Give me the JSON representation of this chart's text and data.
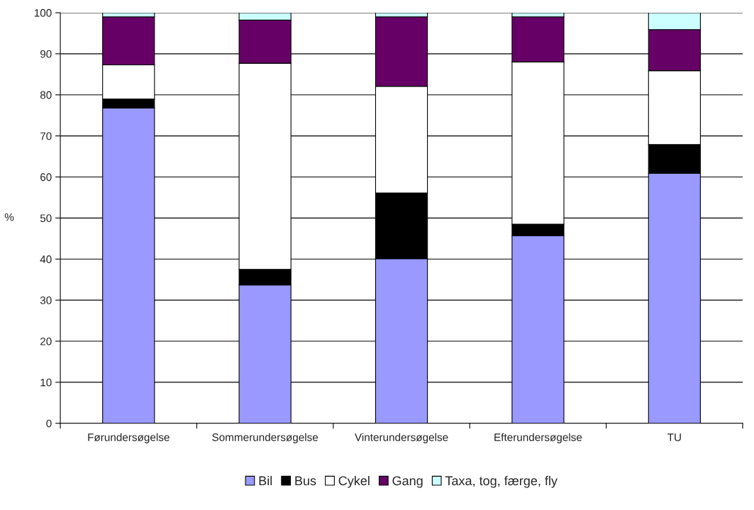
{
  "chart_data": {
    "type": "bar",
    "stacked": true,
    "ylabel": "%",
    "categories": [
      "Førundersøgelse",
      "Sommerundersøgelse",
      "Vinterundersøgelse",
      "Efterundersøgelse",
      "TU"
    ],
    "series": [
      {
        "name": "Bil",
        "color": "#9999ff",
        "values": [
          76.8,
          33.7,
          40.1,
          45.7,
          60.9
        ]
      },
      {
        "name": "Bus",
        "color": "#000000",
        "values": [
          2.2,
          3.8,
          16.0,
          2.8,
          7.0
        ]
      },
      {
        "name": "Cykel",
        "color": "#ffffff",
        "values": [
          8.3,
          50.2,
          26.0,
          39.5,
          18.0
        ]
      },
      {
        "name": "Gang",
        "color": "#660066",
        "values": [
          11.7,
          10.5,
          16.9,
          11.0,
          10.0
        ]
      },
      {
        "name": "Taxa, tog, færge, fly",
        "color": "#ccffff",
        "values": [
          1.0,
          1.8,
          1.0,
          1.0,
          4.1
        ]
      }
    ],
    "ylim": [
      0,
      100
    ],
    "yticks": [
      0,
      10,
      20,
      30,
      40,
      50,
      60,
      70,
      80,
      90,
      100
    ],
    "grid": "y",
    "legend": "bottom"
  }
}
